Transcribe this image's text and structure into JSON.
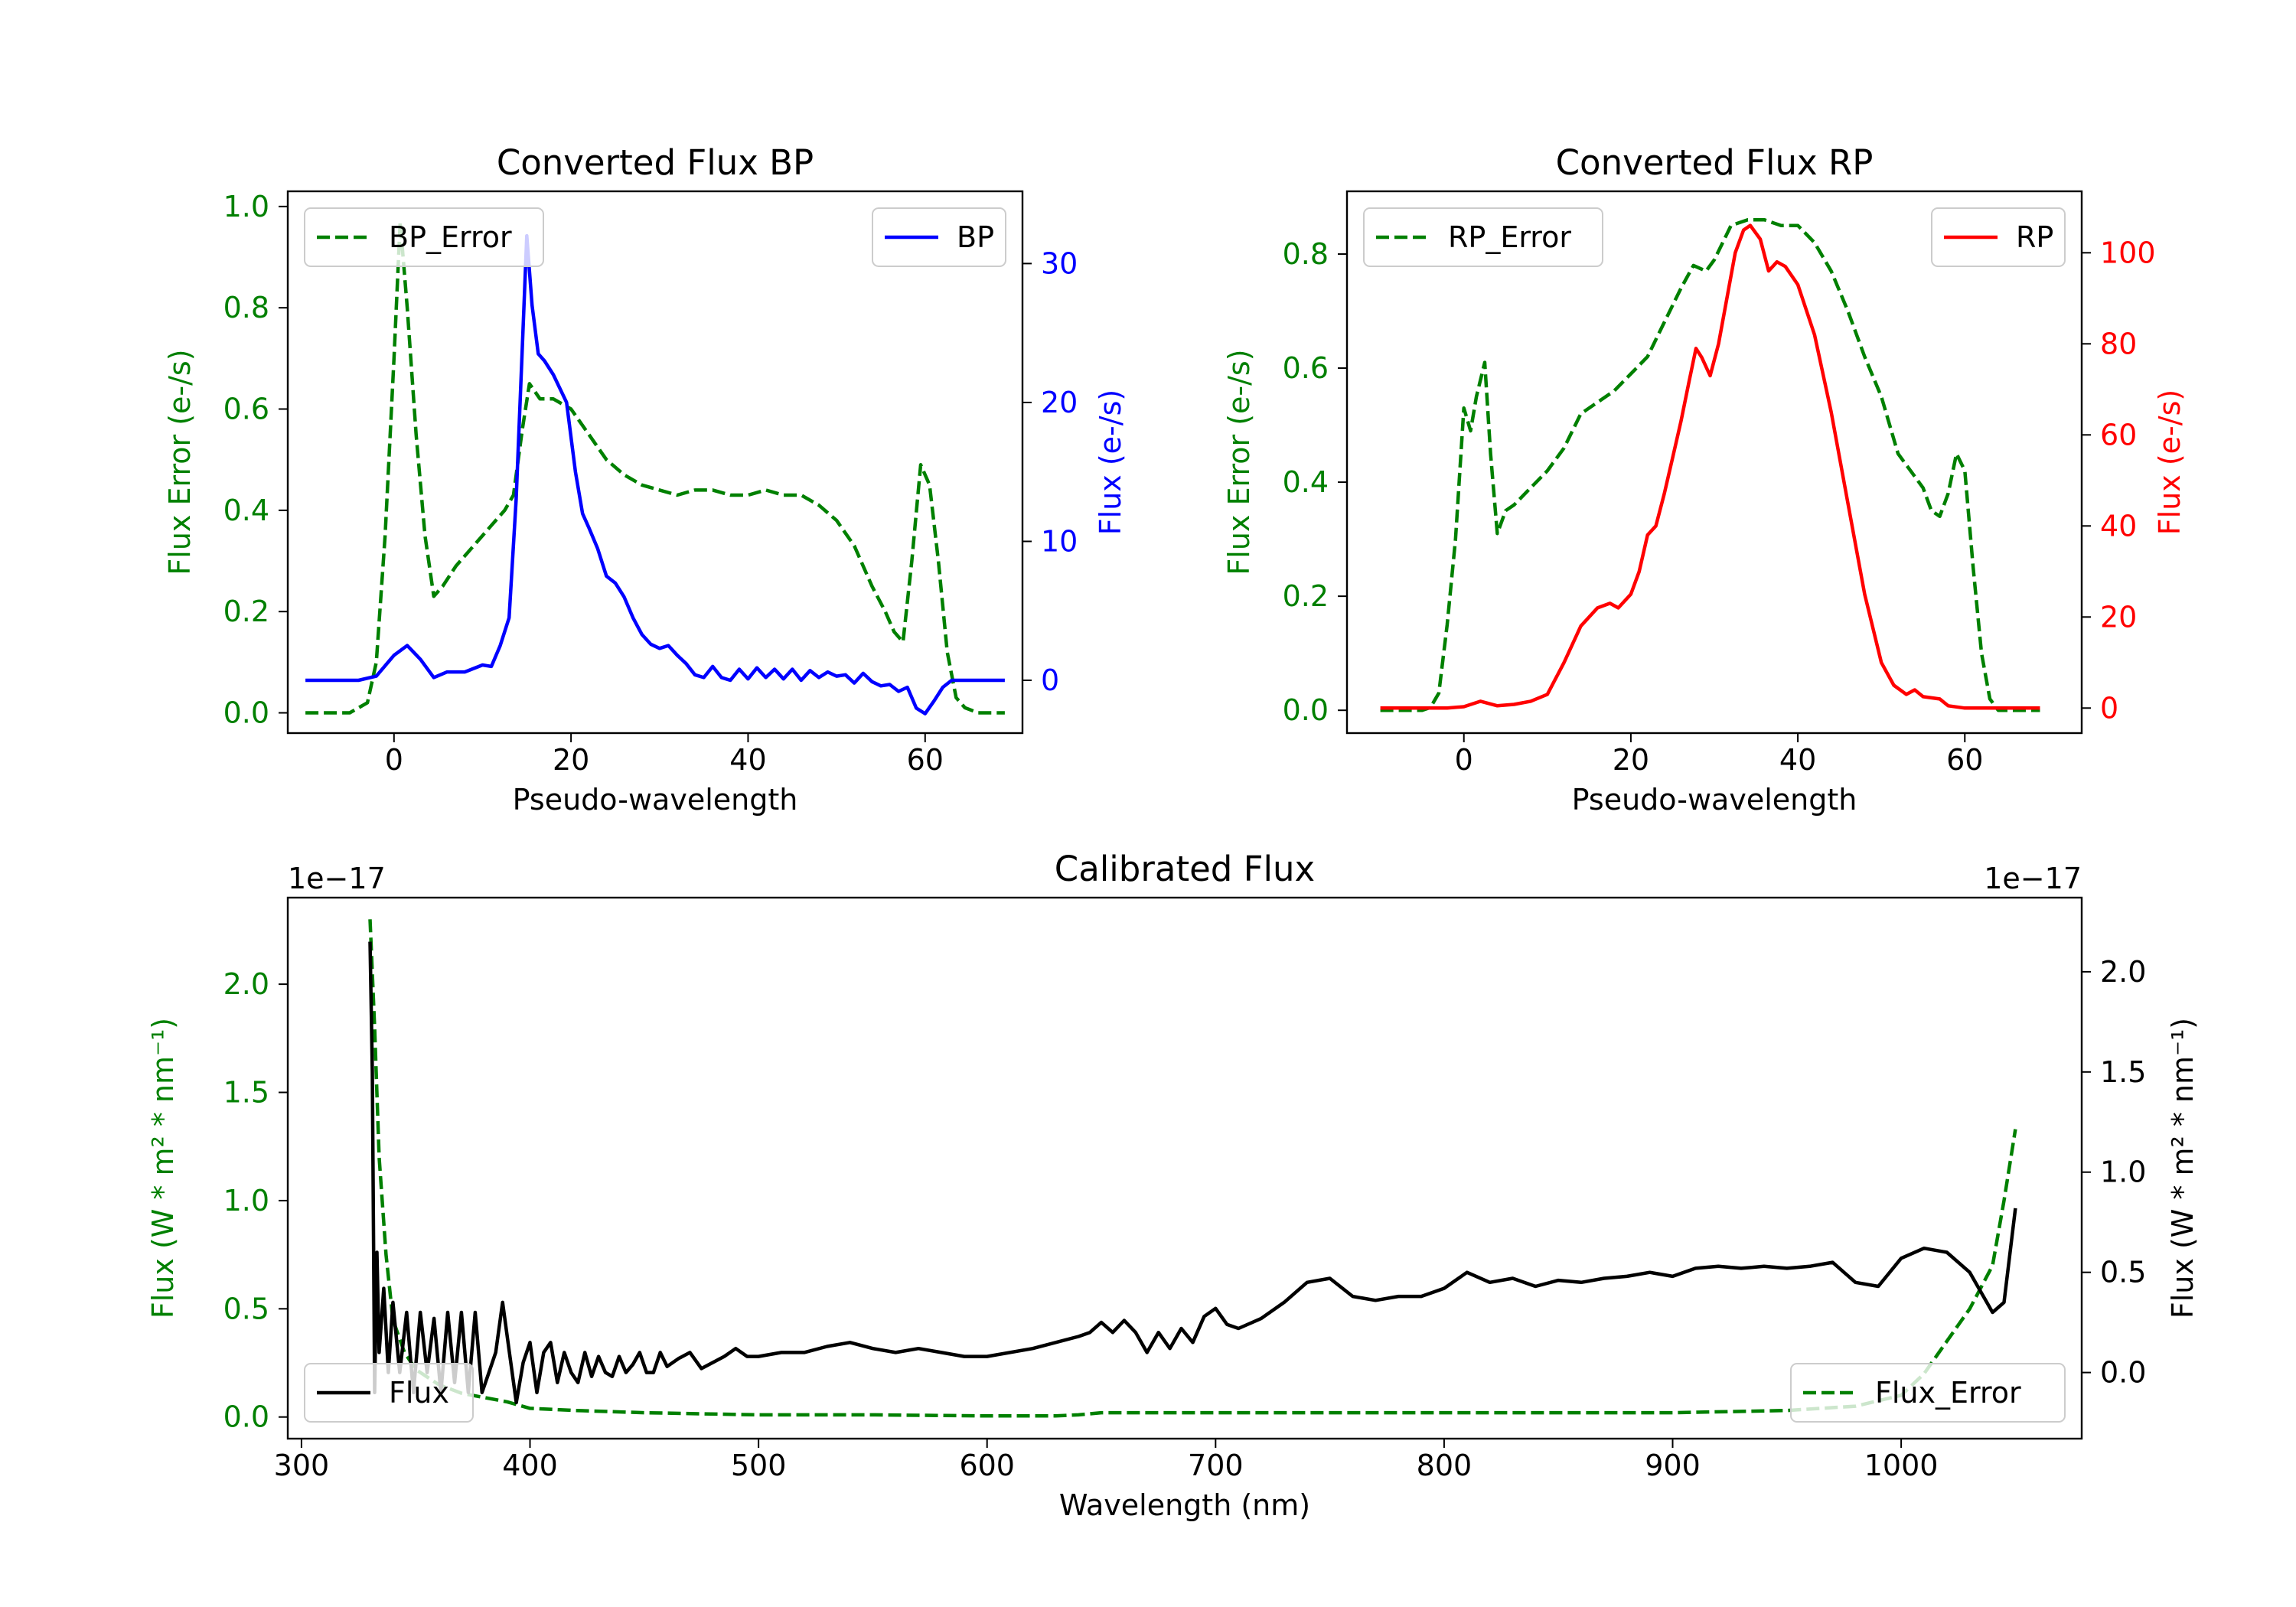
{
  "chart_data": [
    {
      "type": "line",
      "title": "Converted Flux BP",
      "xlabel": "Pseudo-wavelength",
      "xlim": [
        -12,
        71
      ],
      "xticks": [
        0,
        20,
        40,
        60
      ],
      "left_axis": {
        "label": "Flux Error (e-/s)",
        "color": "#008000",
        "ylim": [
          -0.04,
          1.03
        ],
        "ticks": [
          0.0,
          0.2,
          0.4,
          0.6,
          0.8,
          1.0
        ],
        "tick_labels": [
          "0.0",
          "0.2",
          "0.4",
          "0.6",
          "0.8",
          "1.0"
        ]
      },
      "right_axis": {
        "label": "Flux (e-/s)",
        "color": "#0000ff",
        "ylim": [
          -3.8,
          35.2
        ],
        "ticks": [
          0,
          10,
          20,
          30
        ],
        "tick_labels": [
          "0",
          "10",
          "20",
          "30"
        ]
      },
      "legends": [
        {
          "position": "upper-left",
          "label": "BP_Error"
        },
        {
          "position": "upper-right",
          "label": "BP"
        }
      ],
      "series": [
        {
          "name": "BP_Error",
          "axis": "left",
          "color": "#008000",
          "dash": true,
          "x": [
            -10,
            -5,
            -3,
            -2,
            -1,
            0,
            0.7,
            1.5,
            2.5,
            3.5,
            4.5,
            5.5,
            7,
            9,
            11,
            12.5,
            13.5,
            14.5,
            15.3,
            16.5,
            18,
            20,
            22,
            24,
            26,
            28,
            30,
            32,
            34,
            36,
            38,
            40,
            42,
            44,
            46,
            48,
            50,
            52,
            54,
            55.5,
            56.5,
            57.5,
            58.5,
            59.5,
            60.5,
            61.5,
            62.5,
            63.5,
            64.5,
            66,
            69
          ],
          "y": [
            0.0,
            0.0,
            0.02,
            0.1,
            0.35,
            0.7,
            0.97,
            0.8,
            0.55,
            0.35,
            0.23,
            0.25,
            0.29,
            0.33,
            0.37,
            0.4,
            0.43,
            0.56,
            0.65,
            0.62,
            0.62,
            0.6,
            0.55,
            0.5,
            0.47,
            0.45,
            0.44,
            0.43,
            0.44,
            0.44,
            0.43,
            0.43,
            0.44,
            0.43,
            0.43,
            0.41,
            0.38,
            0.33,
            0.25,
            0.2,
            0.16,
            0.14,
            0.3,
            0.49,
            0.45,
            0.3,
            0.12,
            0.03,
            0.01,
            0.0,
            0.0
          ]
        },
        {
          "name": "BP",
          "axis": "right",
          "color": "#0000ff",
          "dash": false,
          "x": [
            -10,
            -4,
            -2,
            0,
            1.5,
            3,
            4.5,
            6,
            8,
            10,
            11,
            12,
            13,
            13.8,
            14.5,
            15,
            15.6,
            16.3,
            17,
            18,
            19.5,
            20.5,
            21.3,
            22,
            23,
            24,
            25,
            26,
            27,
            28,
            29,
            30,
            31,
            32,
            33,
            34,
            35,
            36,
            37,
            38,
            39,
            40,
            41,
            42,
            43,
            44,
            45,
            46,
            47,
            48,
            49,
            50,
            51,
            52,
            53,
            54,
            55,
            56,
            57,
            58,
            59,
            60,
            61,
            62,
            63,
            64,
            66,
            69
          ],
          "y": [
            0,
            0,
            0.3,
            1.8,
            2.5,
            1.5,
            0.2,
            0.6,
            0.6,
            1.1,
            1.0,
            2.5,
            4.5,
            13.0,
            24.0,
            32.0,
            27.0,
            23.5,
            23.0,
            22.0,
            20.0,
            15.0,
            12.0,
            11.0,
            9.5,
            7.5,
            7.0,
            6.0,
            4.5,
            3.3,
            2.6,
            2.3,
            2.5,
            1.8,
            1.2,
            0.4,
            0.2,
            1.0,
            0.2,
            0.0,
            0.8,
            0.1,
            0.9,
            0.2,
            0.8,
            0.1,
            0.8,
            0.0,
            0.7,
            0.2,
            0.6,
            0.3,
            0.4,
            -0.2,
            0.5,
            -0.1,
            -0.4,
            -0.3,
            -0.8,
            -0.5,
            -2.0,
            -2.4,
            -1.5,
            -0.5,
            0.0,
            0.0,
            0.0,
            0.0
          ]
        }
      ]
    },
    {
      "type": "line",
      "title": "Converted Flux RP",
      "xlabel": "Pseudo-wavelength",
      "xlim": [
        -14,
        74
      ],
      "xticks": [
        0,
        20,
        40,
        60
      ],
      "left_axis": {
        "label": "Flux Error (e-/s)",
        "color": "#008000",
        "ylim": [
          -0.04,
          0.91
        ],
        "ticks": [
          0.0,
          0.2,
          0.4,
          0.6,
          0.8
        ],
        "tick_labels": [
          "0.0",
          "0.2",
          "0.4",
          "0.6",
          "0.8"
        ]
      },
      "right_axis": {
        "label": "Flux (e-/s)",
        "color": "#ff0000",
        "ylim": [
          -5.5,
          113.5
        ],
        "ticks": [
          0,
          20,
          40,
          60,
          80,
          100
        ],
        "tick_labels": [
          "0",
          "20",
          "40",
          "60",
          "80",
          "100"
        ]
      },
      "legends": [
        {
          "position": "upper-left",
          "label": "RP_Error"
        },
        {
          "position": "upper-right",
          "label": "RP"
        }
      ],
      "series": [
        {
          "name": "RP_Error",
          "axis": "left",
          "color": "#008000",
          "dash": true,
          "x": [
            -10,
            -5,
            -4,
            -3,
            -2,
            -1,
            0,
            0.8,
            1.5,
            2.5,
            3.2,
            4,
            5,
            6,
            8,
            10,
            12,
            14,
            16,
            18,
            20,
            22,
            24,
            26,
            27.5,
            29,
            30,
            31,
            32,
            34,
            36,
            38,
            40,
            42,
            44,
            46,
            48,
            50,
            52,
            54,
            55,
            56,
            57,
            58,
            59,
            60,
            61,
            62,
            63,
            64,
            69
          ],
          "y": [
            0.0,
            0.0,
            0.005,
            0.03,
            0.15,
            0.3,
            0.53,
            0.49,
            0.55,
            0.61,
            0.45,
            0.31,
            0.35,
            0.36,
            0.39,
            0.42,
            0.46,
            0.52,
            0.54,
            0.56,
            0.59,
            0.62,
            0.68,
            0.74,
            0.78,
            0.77,
            0.79,
            0.82,
            0.85,
            0.86,
            0.86,
            0.85,
            0.85,
            0.82,
            0.77,
            0.7,
            0.62,
            0.55,
            0.45,
            0.41,
            0.39,
            0.35,
            0.34,
            0.38,
            0.45,
            0.42,
            0.25,
            0.1,
            0.02,
            0.0,
            0.0
          ]
        },
        {
          "name": "RP",
          "axis": "right",
          "color": "#ff0000",
          "dash": false,
          "x": [
            -10,
            -4,
            -2,
            0,
            2,
            4,
            6,
            8,
            10,
            12,
            14,
            16,
            17.5,
            18.5,
            20,
            21,
            22,
            23,
            24,
            25,
            26,
            27,
            27.8,
            28.5,
            29.5,
            30.5,
            31.5,
            32.5,
            33.5,
            34.3,
            35.5,
            36.5,
            37.5,
            38.5,
            40,
            42,
            44,
            46,
            48,
            50,
            51.5,
            53,
            54,
            55,
            57,
            58,
            60,
            62,
            64,
            69
          ],
          "y": [
            0,
            0,
            0,
            0.3,
            1.5,
            0.5,
            0.8,
            1.5,
            3.0,
            10.0,
            18.0,
            22.0,
            23.0,
            22.0,
            25.0,
            30.0,
            38.0,
            40.0,
            47.0,
            55.0,
            63.0,
            72.0,
            79.0,
            77.0,
            73.0,
            80.0,
            90.0,
            100.0,
            105.0,
            106.0,
            103.0,
            96.0,
            98.0,
            97.0,
            93.0,
            82.0,
            65.0,
            45.0,
            25.0,
            10.0,
            5.0,
            3.0,
            4.0,
            2.5,
            2.0,
            0.5,
            0.0,
            0.0,
            0.0,
            0.0
          ]
        }
      ]
    },
    {
      "type": "line",
      "title": "Calibrated Flux",
      "xlabel": "Wavelength (nm)",
      "xlim": [
        294,
        1079
      ],
      "xticks": [
        300,
        400,
        500,
        600,
        700,
        800,
        900,
        1000
      ],
      "left_axis": {
        "label": "Flux (W * m² * nm⁻¹)",
        "color": "#008000",
        "ylim": [
          -0.1,
          2.4
        ],
        "ticks": [
          0.0,
          0.5,
          1.0,
          1.5,
          2.0
        ],
        "tick_labels": [
          "0.0",
          "0.5",
          "1.0",
          "1.5",
          "2.0"
        ],
        "offset_text": "1e−17"
      },
      "right_axis": {
        "label": "Flux (W * m² * nm⁻¹)",
        "color": "#000000",
        "ylim": [
          -0.33,
          2.37
        ],
        "ticks": [
          0.0,
          0.5,
          1.0,
          1.5,
          2.0
        ],
        "tick_labels": [
          "0.0",
          "0.5",
          "1.0",
          "1.5",
          "2.0"
        ],
        "offset_text": "1e−17"
      },
      "legends": [
        {
          "position": "lower-left",
          "label": "Flux"
        },
        {
          "position": "lower-right",
          "label": "Flux_Error"
        }
      ],
      "series": [
        {
          "name": "Flux_Error",
          "axis": "left",
          "color": "#008000",
          "dash": true,
          "x": [
            330,
            332,
            334,
            337,
            340,
            345,
            350,
            360,
            370,
            380,
            390,
            400,
            420,
            450,
            500,
            550,
            600,
            630,
            640,
            650,
            700,
            800,
            900,
            950,
            980,
            1000,
            1010,
            1020,
            1030,
            1040,
            1045,
            1050
          ],
          "y": [
            2.3,
            1.8,
            1.2,
            0.75,
            0.45,
            0.3,
            0.22,
            0.15,
            0.11,
            0.09,
            0.07,
            0.04,
            0.03,
            0.02,
            0.01,
            0.01,
            0.005,
            0.005,
            0.01,
            0.02,
            0.02,
            0.02,
            0.02,
            0.03,
            0.05,
            0.1,
            0.2,
            0.35,
            0.5,
            0.7,
            1.0,
            1.33
          ]
        },
        {
          "name": "Flux",
          "axis": "right",
          "color": "#000000",
          "dash": false,
          "x": [
            330,
            331,
            332,
            333,
            334,
            336,
            338,
            340,
            343,
            346,
            349,
            352,
            355,
            358,
            361,
            364,
            367,
            370,
            373,
            376,
            379,
            382,
            385,
            388,
            391,
            394,
            397,
            400,
            403,
            406,
            409,
            412,
            415,
            418,
            421,
            424,
            427,
            430,
            433,
            436,
            439,
            442,
            445,
            448,
            451,
            454,
            457,
            460,
            465,
            470,
            475,
            480,
            485,
            490,
            495,
            500,
            510,
            520,
            530,
            540,
            550,
            560,
            570,
            580,
            590,
            600,
            620,
            640,
            645,
            650,
            655,
            660,
            665,
            670,
            675,
            680,
            685,
            690,
            695,
            700,
            705,
            710,
            720,
            730,
            740,
            750,
            760,
            770,
            780,
            790,
            800,
            810,
            820,
            830,
            840,
            850,
            860,
            870,
            880,
            890,
            900,
            910,
            920,
            930,
            940,
            950,
            960,
            970,
            980,
            990,
            1000,
            1010,
            1020,
            1030,
            1040,
            1045,
            1050
          ],
          "y": [
            2.15,
            1.5,
            -0.1,
            0.6,
            0.1,
            0.42,
            0.0,
            0.35,
            0.0,
            0.3,
            -0.1,
            0.3,
            0.0,
            0.27,
            -0.1,
            0.3,
            -0.05,
            0.3,
            -0.1,
            0.3,
            -0.1,
            0.0,
            0.1,
            0.35,
            0.1,
            -0.15,
            0.05,
            0.15,
            -0.1,
            0.1,
            0.15,
            -0.05,
            0.1,
            0.0,
            -0.05,
            0.1,
            -0.02,
            0.08,
            0.0,
            -0.02,
            0.08,
            0.0,
            0.04,
            0.1,
            0.0,
            0.0,
            0.1,
            0.03,
            0.07,
            0.1,
            0.02,
            0.05,
            0.08,
            0.12,
            0.08,
            0.08,
            0.1,
            0.1,
            0.13,
            0.15,
            0.12,
            0.1,
            0.12,
            0.1,
            0.08,
            0.08,
            0.12,
            0.18,
            0.2,
            0.25,
            0.2,
            0.26,
            0.2,
            0.1,
            0.2,
            0.12,
            0.22,
            0.15,
            0.28,
            0.32,
            0.24,
            0.22,
            0.27,
            0.35,
            0.45,
            0.47,
            0.38,
            0.36,
            0.38,
            0.38,
            0.42,
            0.5,
            0.45,
            0.47,
            0.43,
            0.46,
            0.45,
            0.47,
            0.48,
            0.5,
            0.48,
            0.52,
            0.53,
            0.52,
            0.53,
            0.52,
            0.53,
            0.55,
            0.45,
            0.43,
            0.57,
            0.62,
            0.6,
            0.5,
            0.3,
            0.35,
            0.82
          ]
        }
      ]
    }
  ]
}
